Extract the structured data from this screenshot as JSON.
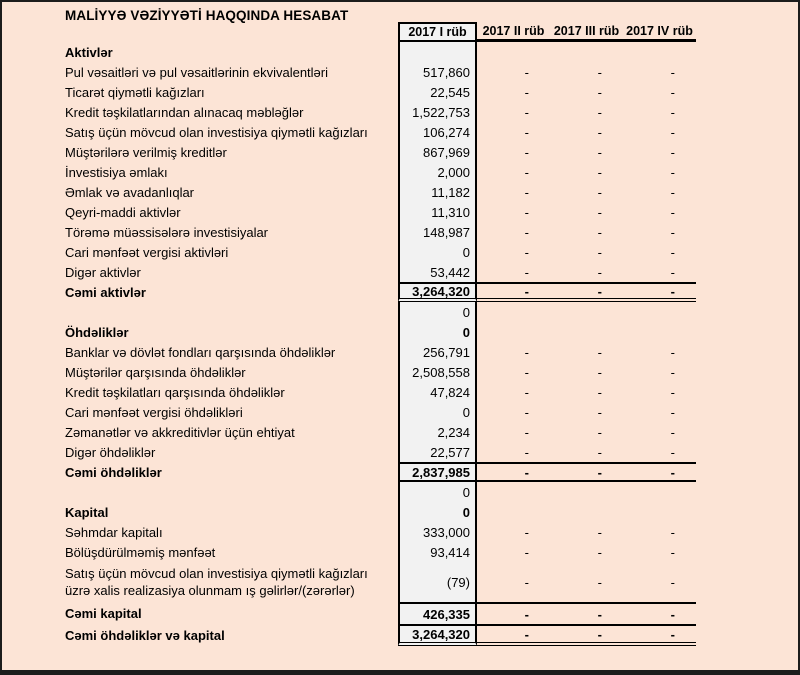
{
  "title": "MALİYYƏ VƏZİYYƏTİ HAQQINDA HESABAT",
  "colors": {
    "sheet_background": "#fce4d6",
    "value_column_background": "#f2f2f2",
    "border": "#000000"
  },
  "table": {
    "period_columns": [
      "2017 I rüb",
      "2017 II rüb",
      "2017 III rüb",
      "2017 IV rüb"
    ],
    "empty_value_symbol": "-",
    "rows": [
      {
        "type": "section",
        "label": "Aktivlər",
        "value": "",
        "dashes": false
      },
      {
        "type": "item",
        "label": "Pul vəsaitləri və pul vəsaitlərinin ekvivalentləri",
        "value": "517,860",
        "dashes": true
      },
      {
        "type": "item",
        "label": "Ticarət qiymətli kağızları",
        "value": "22,545",
        "dashes": true
      },
      {
        "type": "item",
        "label": "Kredit təşkilatlarından alınacaq məbləğlər",
        "value": "1,522,753",
        "dashes": true
      },
      {
        "type": "item",
        "label": "Satış üçün mövcud olan investisiya qiymətli kağızları",
        "value": "106,274",
        "dashes": true
      },
      {
        "type": "item",
        "label": "Müştərilərə verilmiş kreditlər",
        "value": "867,969",
        "dashes": true
      },
      {
        "type": "item",
        "label": "İnvestisiya əmlakı",
        "value": "2,000",
        "dashes": true
      },
      {
        "type": "item",
        "label": "Əmlak və avadanlıqlar",
        "value": "11,182",
        "dashes": true
      },
      {
        "type": "item",
        "label": "Qeyri-maddi aktivlər",
        "value": "11,310",
        "dashes": true
      },
      {
        "type": "item",
        "label": "Törəmə müəssisələrə investisiyalar",
        "value": "148,987",
        "dashes": true
      },
      {
        "type": "item",
        "label": "Cari mənfəət vergisi aktivləri",
        "value": "0",
        "dashes": true
      },
      {
        "type": "item",
        "label": "Digər aktivlər",
        "value": "53,442",
        "dashes": true
      },
      {
        "type": "total-double",
        "label": "Cəmi aktivlər",
        "value": "3,264,320",
        "dashes": true
      },
      {
        "type": "spacer",
        "label": "",
        "value": "0",
        "dashes": false
      },
      {
        "type": "section",
        "label": "Öhdəliklər",
        "value": "0",
        "dashes": false
      },
      {
        "type": "item",
        "label": "Banklar və dövlət fondları qarşısında öhdəliklər",
        "value": "256,791",
        "dashes": true
      },
      {
        "type": "item",
        "label": "Müştərilər qarşısında öhdəliklər",
        "value": "2,508,558",
        "dashes": true
      },
      {
        "type": "item",
        "label": "Kredit təşkilatları qarşısında öhdəliklər",
        "value": "47,824",
        "dashes": true
      },
      {
        "type": "item",
        "label": "Cari mənfəət vergisi öhdəlikləri",
        "value": "0",
        "dashes": true
      },
      {
        "type": "item",
        "label": "Zəmanətlər və akkreditivlər üçün ehtiyat",
        "value": "2,234",
        "dashes": true
      },
      {
        "type": "item",
        "label": "Digər öhdəliklər",
        "value": "22,577",
        "dashes": true
      },
      {
        "type": "total",
        "label": "Cəmi öhdəliklər",
        "value": "2,837,985",
        "dashes": true
      },
      {
        "type": "spacer",
        "label": "",
        "value": "0",
        "dashes": false
      },
      {
        "type": "section",
        "label": "Kapital",
        "value": "0",
        "dashes": false
      },
      {
        "type": "item",
        "label": "Səhmdar kapitalı",
        "value": "333,000",
        "dashes": true
      },
      {
        "type": "item",
        "label": "Bölüşdürülməmiş mənfəət",
        "value": "93,414",
        "dashes": true
      },
      {
        "type": "item-tall",
        "label": "Satış üçün mövcud olan investisiya qiymətli kağızları üzrə xalis realizasiya olunmam ış gəlirlər/(zərərlər)",
        "value": "(79)",
        "dashes": true
      },
      {
        "type": "total-top",
        "label": "Cəmi kapital",
        "value": "426,335",
        "dashes": true
      },
      {
        "type": "grand-total",
        "label": "Cəmi öhdəliklər və kapital",
        "value": "3,264,320",
        "dashes": true
      }
    ]
  }
}
